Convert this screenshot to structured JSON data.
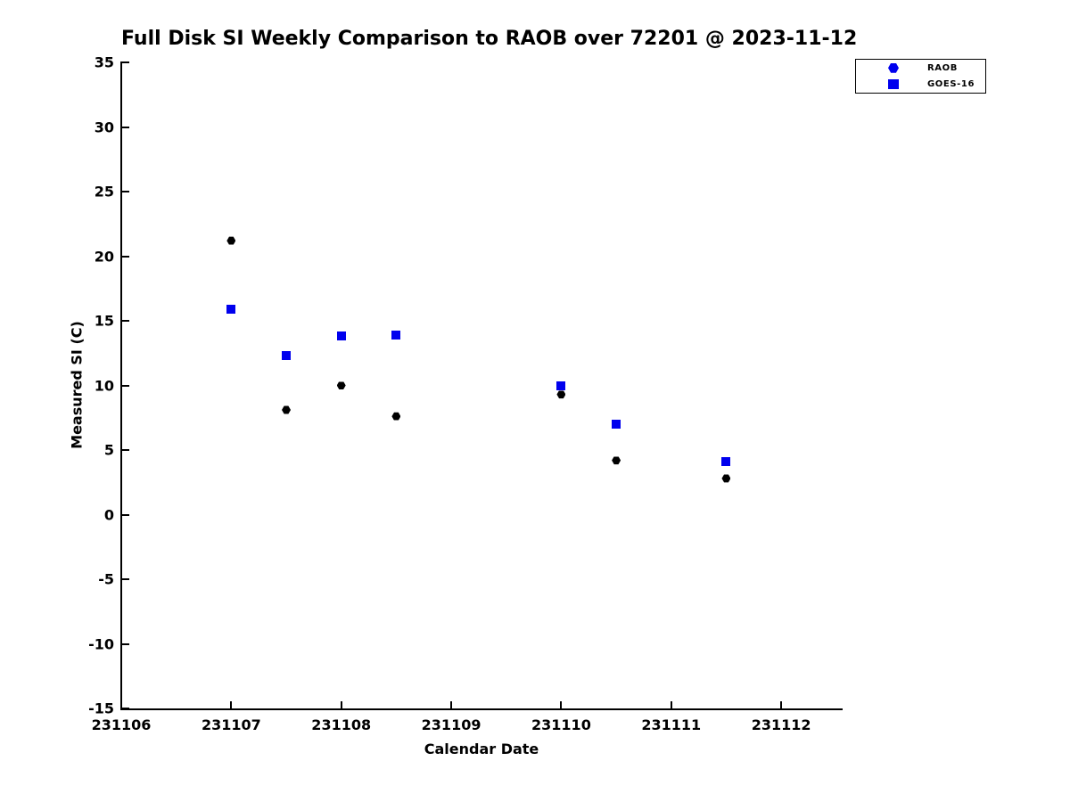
{
  "chart_data": {
    "type": "scatter",
    "title": "Full Disk SI Weekly Comparison to RAOB over 72201 @ 2023-11-12",
    "xlabel": "Calendar Date",
    "ylabel": "Measured SI (C)",
    "xlim": [
      231106,
      231112.55
    ],
    "ylim": [
      -15,
      35
    ],
    "x_ticks": [
      231106,
      231107,
      231108,
      231109,
      231110,
      231111,
      231112
    ],
    "y_ticks": [
      35,
      30,
      25,
      20,
      15,
      10,
      5,
      0,
      -5,
      -10,
      -15
    ],
    "grid": false,
    "legend_position": "outside-top-right",
    "legend": {
      "items": [
        {
          "label": "RAOB",
          "marker": "hexagon",
          "color": "#0000EE"
        },
        {
          "label": "GOES-16",
          "marker": "square",
          "color": "#0000EE"
        }
      ]
    },
    "series": [
      {
        "name": "RAOB",
        "marker": "hexagon",
        "color": "#000000",
        "x": [
          231107.0,
          231107.5,
          231108.0,
          231108.5,
          231110.0,
          231110.5,
          231111.5
        ],
        "y": [
          21.2,
          8.1,
          10.0,
          7.6,
          9.3,
          4.2,
          2.8
        ]
      },
      {
        "name": "GOES-16",
        "marker": "square",
        "color": "#0000EE",
        "x": [
          231107.0,
          231107.5,
          231108.0,
          231108.5,
          231110.0,
          231110.5,
          231111.5
        ],
        "y": [
          15.9,
          12.3,
          13.8,
          13.9,
          10.0,
          7.0,
          4.1
        ]
      }
    ]
  }
}
